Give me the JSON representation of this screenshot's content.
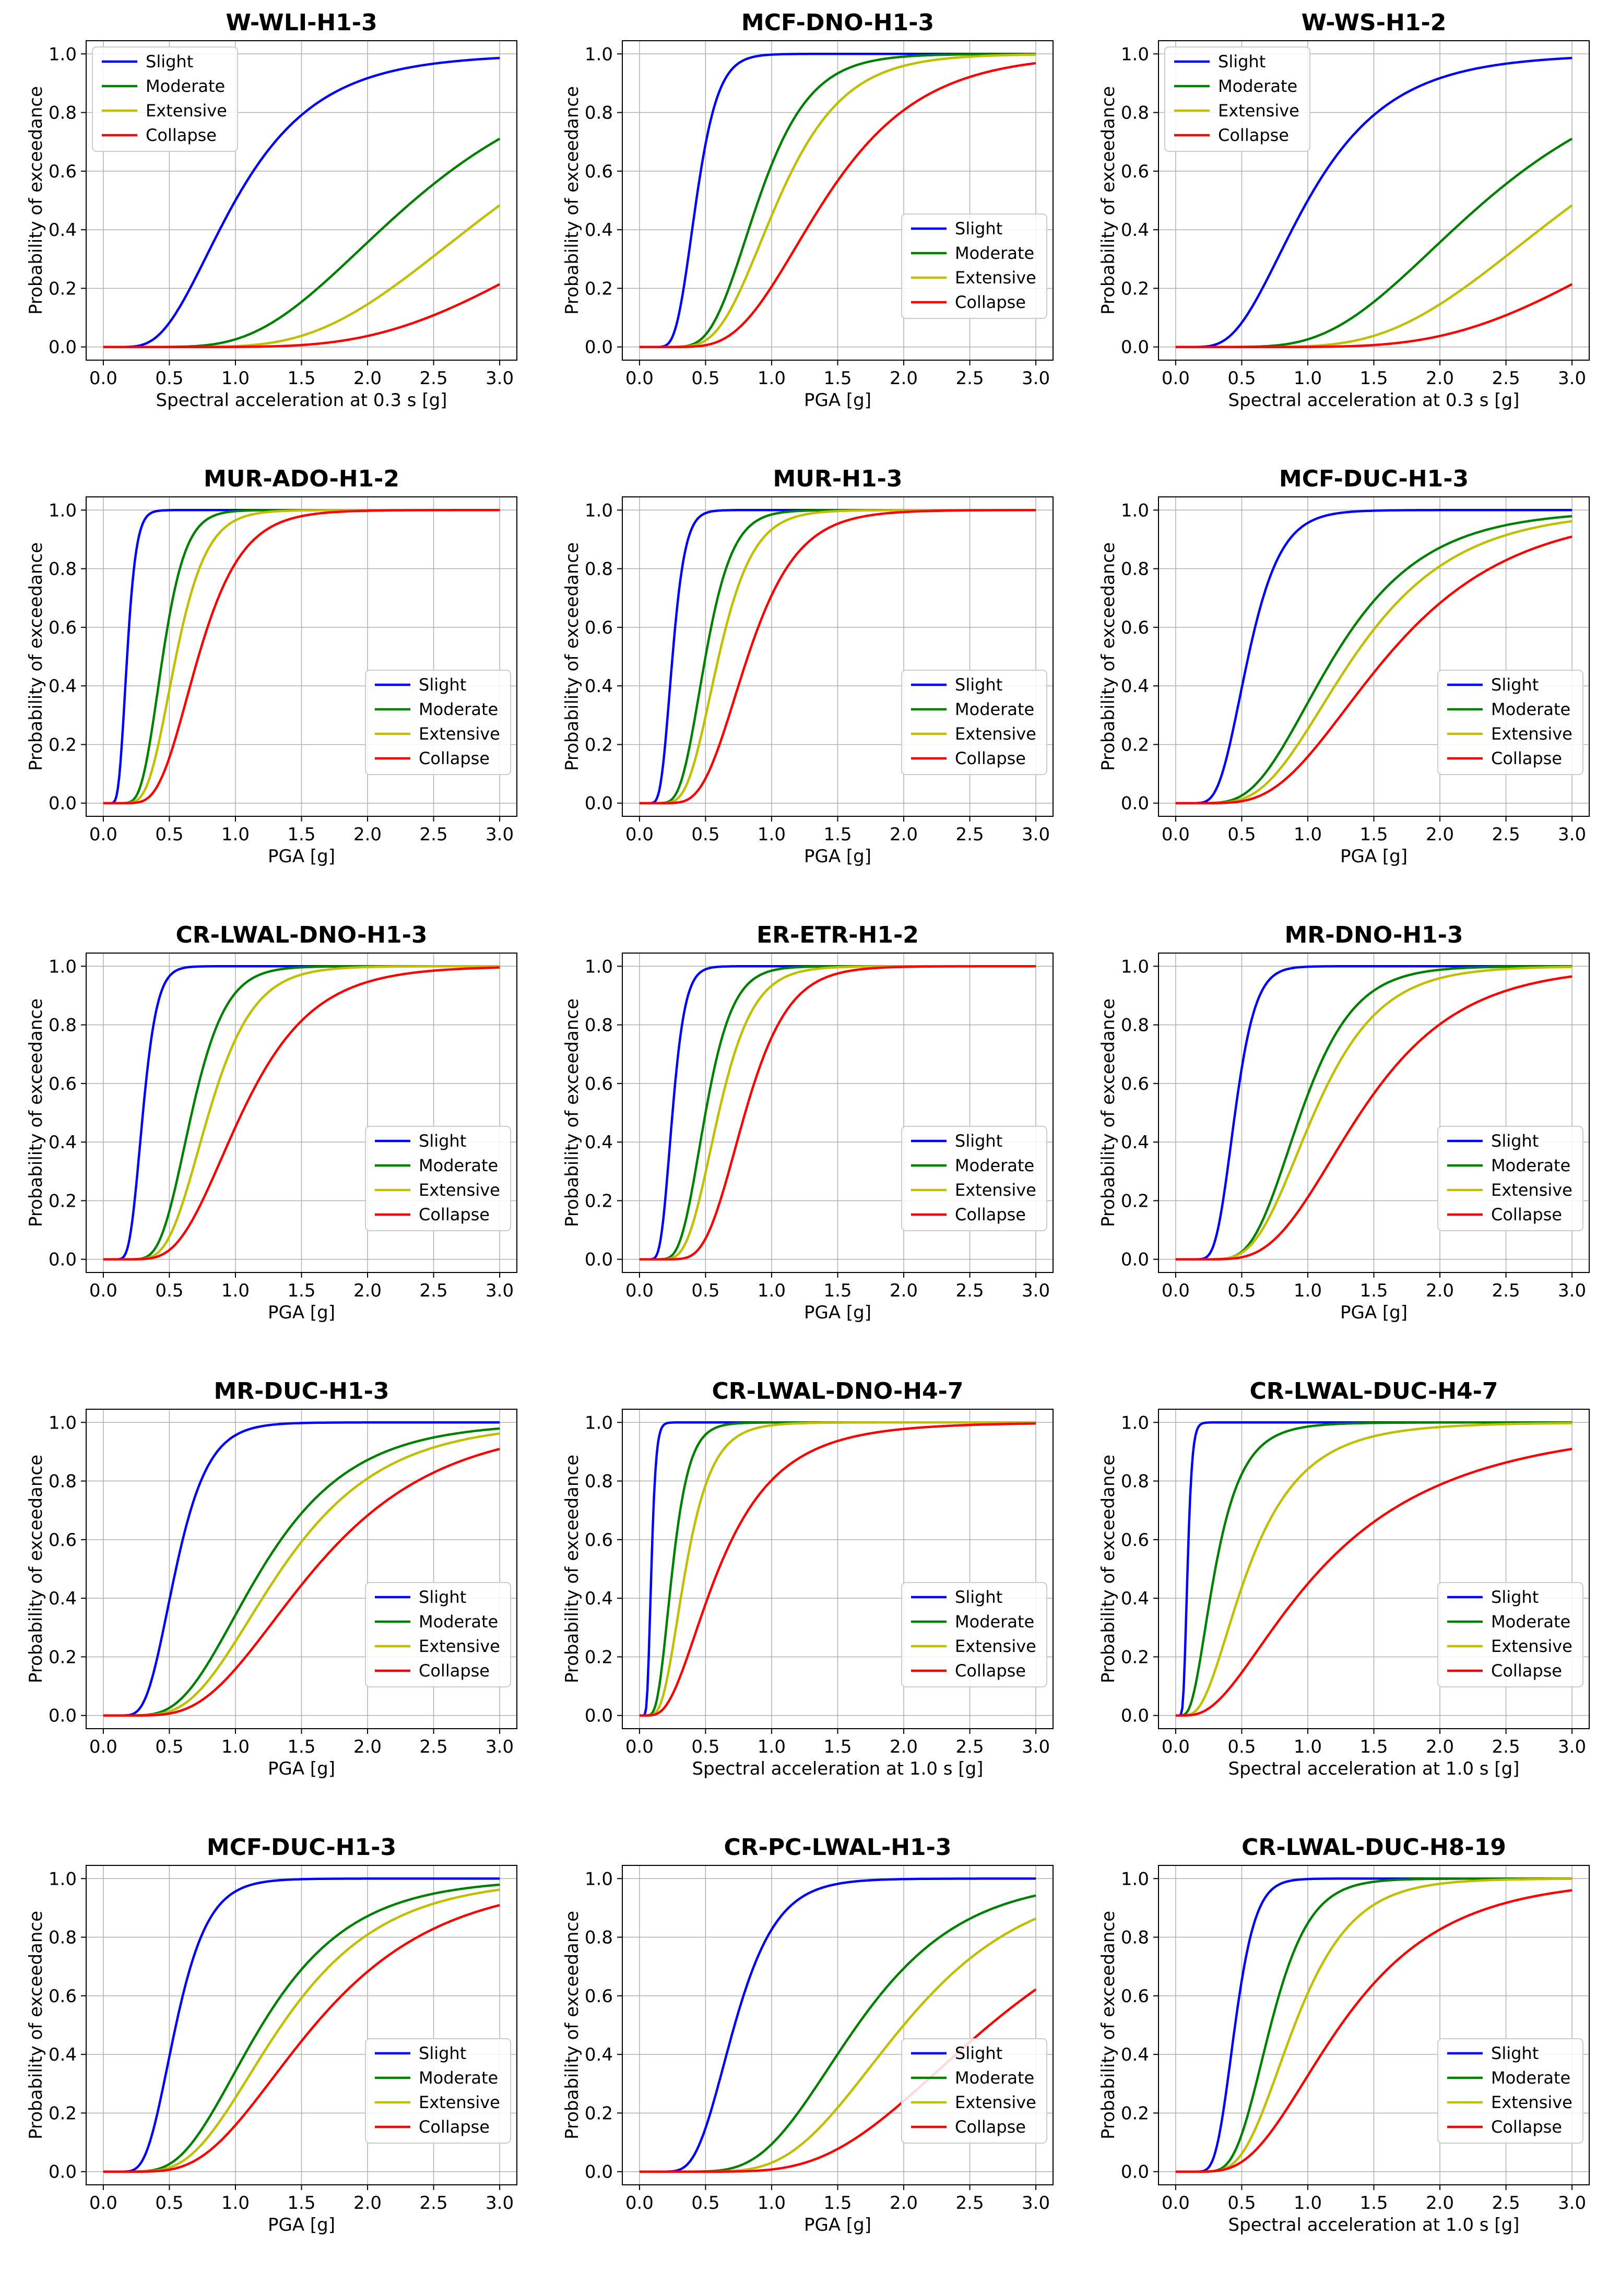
{
  "colors": {
    "Slight": "#0000ff",
    "Moderate": "#008000",
    "Extensive": "#bfbf00",
    "Collapse": "#ff0000"
  },
  "chart_data": [
    {
      "type": "line",
      "title": "W-WLI-H1-3",
      "xlabel": "Spectral acceleration at 0.3 s [g]",
      "ylabel": "Probability of exceedance",
      "xlim": [
        0,
        3
      ],
      "ylim": [
        0,
        1
      ],
      "xticks": [
        "0.0",
        "0.5",
        "1.0",
        "1.5",
        "2.0",
        "2.5",
        "3.0"
      ],
      "yticks": [
        "0.0",
        "0.2",
        "0.4",
        "0.6",
        "0.8",
        "1.0"
      ],
      "grid": true,
      "legend": "upper-left",
      "series": [
        {
          "name": "Slight",
          "median": 1.0,
          "beta": 0.5
        },
        {
          "name": "Moderate",
          "median": 2.35,
          "beta": 0.44
        },
        {
          "name": "Extensive",
          "median": 3.05,
          "beta": 0.4
        },
        {
          "name": "Collapse",
          "median": 4.15,
          "beta": 0.41
        }
      ]
    },
    {
      "type": "line",
      "title": "MCF-DNO-H1-3",
      "xlabel": "PGA [g]",
      "ylabel": "Probability of exceedance",
      "xlim": [
        0,
        3
      ],
      "ylim": [
        0,
        1
      ],
      "xticks": [
        "0.0",
        "0.5",
        "1.0",
        "1.5",
        "2.0",
        "2.5",
        "3.0"
      ],
      "yticks": [
        "0.0",
        "0.2",
        "0.4",
        "0.6",
        "0.8",
        "1.0"
      ],
      "grid": true,
      "legend": "lower-right",
      "series": [
        {
          "name": "Slight",
          "median": 0.43,
          "beta": 0.3
        },
        {
          "name": "Moderate",
          "median": 0.9,
          "beta": 0.34
        },
        {
          "name": "Extensive",
          "median": 1.05,
          "beta": 0.37
        },
        {
          "name": "Collapse",
          "median": 1.4,
          "beta": 0.41
        }
      ]
    },
    {
      "type": "line",
      "title": "W-WS-H1-2",
      "xlabel": "Spectral acceleration at 0.3 s [g]",
      "ylabel": "Probability of exceedance",
      "xlim": [
        0,
        3
      ],
      "ylim": [
        0,
        1
      ],
      "xticks": [
        "0.0",
        "0.5",
        "1.0",
        "1.5",
        "2.0",
        "2.5",
        "3.0"
      ],
      "yticks": [
        "0.0",
        "0.2",
        "0.4",
        "0.6",
        "0.8",
        "1.0"
      ],
      "grid": true,
      "legend": "upper-left",
      "series": [
        {
          "name": "Slight",
          "median": 1.0,
          "beta": 0.5
        },
        {
          "name": "Moderate",
          "median": 2.35,
          "beta": 0.44
        },
        {
          "name": "Extensive",
          "median": 3.05,
          "beta": 0.4
        },
        {
          "name": "Collapse",
          "median": 4.15,
          "beta": 0.41
        }
      ]
    },
    {
      "type": "line",
      "title": "MUR-ADO-H1-2",
      "xlabel": "PGA [g]",
      "ylabel": "Probability of exceedance",
      "xlim": [
        0,
        3
      ],
      "ylim": [
        0,
        1
      ],
      "xticks": [
        "0.0",
        "0.5",
        "1.0",
        "1.5",
        "2.0",
        "2.5",
        "3.0"
      ],
      "yticks": [
        "0.0",
        "0.2",
        "0.4",
        "0.6",
        "0.8",
        "1.0"
      ],
      "grid": true,
      "legend": "lower-right",
      "series": [
        {
          "name": "Slight",
          "median": 0.18,
          "beta": 0.3
        },
        {
          "name": "Moderate",
          "median": 0.45,
          "beta": 0.3
        },
        {
          "name": "Extensive",
          "median": 0.55,
          "beta": 0.33
        },
        {
          "name": "Collapse",
          "median": 0.72,
          "beta": 0.36
        }
      ]
    },
    {
      "type": "line",
      "title": "MUR-H1-3",
      "xlabel": "PGA [g]",
      "ylabel": "Probability of exceedance",
      "xlim": [
        0,
        3
      ],
      "ylim": [
        0,
        1
      ],
      "xticks": [
        "0.0",
        "0.5",
        "1.0",
        "1.5",
        "2.0",
        "2.5",
        "3.0"
      ],
      "yticks": [
        "0.0",
        "0.2",
        "0.4",
        "0.6",
        "0.8",
        "1.0"
      ],
      "grid": true,
      "legend": "lower-right",
      "series": [
        {
          "name": "Slight",
          "median": 0.25,
          "beta": 0.3
        },
        {
          "name": "Moderate",
          "median": 0.5,
          "beta": 0.32
        },
        {
          "name": "Extensive",
          "median": 0.6,
          "beta": 0.34
        },
        {
          "name": "Collapse",
          "median": 0.82,
          "beta": 0.36
        }
      ]
    },
    {
      "type": "line",
      "title": "MCF-DUC-H1-3",
      "xlabel": "PGA [g]",
      "ylabel": "Probability of exceedance",
      "xlim": [
        0,
        3
      ],
      "ylim": [
        0,
        1
      ],
      "xticks": [
        "0.0",
        "0.5",
        "1.0",
        "1.5",
        "2.0",
        "2.5",
        "3.0"
      ],
      "yticks": [
        "0.0",
        "0.2",
        "0.4",
        "0.6",
        "0.8",
        "1.0"
      ],
      "grid": true,
      "legend": "lower-right",
      "series": [
        {
          "name": "Slight",
          "median": 0.55,
          "beta": 0.35
        },
        {
          "name": "Moderate",
          "median": 1.2,
          "beta": 0.45
        },
        {
          "name": "Extensive",
          "median": 1.35,
          "beta": 0.45
        },
        {
          "name": "Collapse",
          "median": 1.6,
          "beta": 0.47
        }
      ]
    },
    {
      "type": "line",
      "title": "CR-LWAL-DNO-H1-3",
      "xlabel": "PGA [g]",
      "ylabel": "Probability of exceedance",
      "xlim": [
        0,
        3
      ],
      "ylim": [
        0,
        1
      ],
      "xticks": [
        "0.0",
        "0.5",
        "1.0",
        "1.5",
        "2.0",
        "2.5",
        "3.0"
      ],
      "yticks": [
        "0.0",
        "0.2",
        "0.4",
        "0.6",
        "0.8",
        "1.0"
      ],
      "grid": true,
      "legend": "lower-right",
      "series": [
        {
          "name": "Slight",
          "median": 0.3,
          "beta": 0.28
        },
        {
          "name": "Moderate",
          "median": 0.67,
          "beta": 0.3
        },
        {
          "name": "Extensive",
          "median": 0.8,
          "beta": 0.33
        },
        {
          "name": "Collapse",
          "median": 1.05,
          "beta": 0.4
        }
      ]
    },
    {
      "type": "line",
      "title": "ER-ETR-H1-2",
      "xlabel": "PGA [g]",
      "ylabel": "Probability of exceedance",
      "xlim": [
        0,
        3
      ],
      "ylim": [
        0,
        1
      ],
      "xticks": [
        "0.0",
        "0.5",
        "1.0",
        "1.5",
        "2.0",
        "2.5",
        "3.0"
      ],
      "yticks": [
        "0.0",
        "0.2",
        "0.4",
        "0.6",
        "0.8",
        "1.0"
      ],
      "grid": true,
      "legend": "lower-right",
      "series": [
        {
          "name": "Slight",
          "median": 0.25,
          "beta": 0.3
        },
        {
          "name": "Moderate",
          "median": 0.5,
          "beta": 0.32
        },
        {
          "name": "Extensive",
          "median": 0.6,
          "beta": 0.34
        },
        {
          "name": "Collapse",
          "median": 0.8,
          "beta": 0.32
        }
      ]
    },
    {
      "type": "line",
      "title": "MR-DNO-H1-3",
      "xlabel": "PGA [g]",
      "ylabel": "Probability of exceedance",
      "xlim": [
        0,
        3
      ],
      "ylim": [
        0,
        1
      ],
      "xticks": [
        "0.0",
        "0.5",
        "1.0",
        "1.5",
        "2.0",
        "2.5",
        "3.0"
      ],
      "yticks": [
        "0.0",
        "0.2",
        "0.4",
        "0.6",
        "0.8",
        "1.0"
      ],
      "grid": true,
      "legend": "lower-right",
      "series": [
        {
          "name": "Slight",
          "median": 0.45,
          "beta": 0.27
        },
        {
          "name": "Moderate",
          "median": 0.95,
          "beta": 0.33
        },
        {
          "name": "Extensive",
          "median": 1.05,
          "beta": 0.37
        },
        {
          "name": "Collapse",
          "median": 1.4,
          "beta": 0.42
        }
      ]
    },
    {
      "type": "line",
      "title": "MR-DUC-H1-3",
      "xlabel": "PGA [g]",
      "ylabel": "Probability of exceedance",
      "xlim": [
        0,
        3
      ],
      "ylim": [
        0,
        1
      ],
      "xticks": [
        "0.0",
        "0.5",
        "1.0",
        "1.5",
        "2.0",
        "2.5",
        "3.0"
      ],
      "yticks": [
        "0.0",
        "0.2",
        "0.4",
        "0.6",
        "0.8",
        "1.0"
      ],
      "grid": true,
      "legend": "lower-right",
      "series": [
        {
          "name": "Slight",
          "median": 0.55,
          "beta": 0.35
        },
        {
          "name": "Moderate",
          "median": 1.2,
          "beta": 0.45
        },
        {
          "name": "Extensive",
          "median": 1.35,
          "beta": 0.45
        },
        {
          "name": "Collapse",
          "median": 1.6,
          "beta": 0.47
        }
      ]
    },
    {
      "type": "line",
      "title": "CR-LWAL-DNO-H4-7",
      "xlabel": "Spectral acceleration at 1.0 s [g]",
      "ylabel": "Probability of exceedance",
      "xlim": [
        0,
        3
      ],
      "ylim": [
        0,
        1
      ],
      "xticks": [
        "0.0",
        "0.5",
        "1.0",
        "1.5",
        "2.0",
        "2.5",
        "3.0"
      ],
      "yticks": [
        "0.0",
        "0.2",
        "0.4",
        "0.6",
        "0.8",
        "1.0"
      ],
      "grid": true,
      "legend": "lower-right",
      "series": [
        {
          "name": "Slight",
          "median": 0.09,
          "beta": 0.3
        },
        {
          "name": "Moderate",
          "median": 0.25,
          "beta": 0.4
        },
        {
          "name": "Extensive",
          "median": 0.35,
          "beta": 0.45
        },
        {
          "name": "Collapse",
          "median": 0.6,
          "beta": 0.6
        }
      ]
    },
    {
      "type": "line",
      "title": "CR-LWAL-DUC-H4-7",
      "xlabel": "Spectral acceleration at 1.0 s [g]",
      "ylabel": "Probability of exceedance",
      "xlim": [
        0,
        3
      ],
      "ylim": [
        0,
        1
      ],
      "xticks": [
        "0.0",
        "0.5",
        "1.0",
        "1.5",
        "2.0",
        "2.5",
        "3.0"
      ],
      "yticks": [
        "0.0",
        "0.2",
        "0.4",
        "0.6",
        "0.8",
        "1.0"
      ],
      "grid": true,
      "legend": "lower-right",
      "series": [
        {
          "name": "Slight",
          "median": 0.09,
          "beta": 0.3
        },
        {
          "name": "Moderate",
          "median": 0.3,
          "beta": 0.55
        },
        {
          "name": "Extensive",
          "median": 0.55,
          "beta": 0.6
        },
        {
          "name": "Collapse",
          "median": 1.1,
          "beta": 0.75
        }
      ]
    },
    {
      "type": "line",
      "title": "MCF-DUC-H1-3",
      "xlabel": "PGA [g]",
      "ylabel": "Probability of exceedance",
      "xlim": [
        0,
        3
      ],
      "ylim": [
        0,
        1
      ],
      "xticks": [
        "0.0",
        "0.5",
        "1.0",
        "1.5",
        "2.0",
        "2.5",
        "3.0"
      ],
      "yticks": [
        "0.0",
        "0.2",
        "0.4",
        "0.6",
        "0.8",
        "1.0"
      ],
      "grid": true,
      "legend": "lower-right",
      "series": [
        {
          "name": "Slight",
          "median": 0.55,
          "beta": 0.35
        },
        {
          "name": "Moderate",
          "median": 1.2,
          "beta": 0.45
        },
        {
          "name": "Extensive",
          "median": 1.35,
          "beta": 0.45
        },
        {
          "name": "Collapse",
          "median": 1.6,
          "beta": 0.47
        }
      ]
    },
    {
      "type": "line",
      "title": "CR-PC-LWAL-H1-3",
      "xlabel": "PGA [g]",
      "ylabel": "Probability of exceedance",
      "xlim": [
        0,
        3
      ],
      "ylim": [
        0,
        1
      ],
      "xticks": [
        "0.0",
        "0.5",
        "1.0",
        "1.5",
        "2.0",
        "2.5",
        "3.0"
      ],
      "yticks": [
        "0.0",
        "0.2",
        "0.4",
        "0.6",
        "0.8",
        "1.0"
      ],
      "grid": true,
      "legend": "lower-right",
      "series": [
        {
          "name": "Slight",
          "median": 0.72,
          "beta": 0.35
        },
        {
          "name": "Moderate",
          "median": 1.65,
          "beta": 0.38
        },
        {
          "name": "Extensive",
          "median": 2.0,
          "beta": 0.37
        },
        {
          "name": "Collapse",
          "median": 2.65,
          "beta": 0.4
        }
      ]
    },
    {
      "type": "line",
      "title": "CR-LWAL-DUC-H8-19",
      "xlabel": "Spectral acceleration at 1.0 s [g]",
      "ylabel": "Probability of exceedance",
      "xlim": [
        0,
        3
      ],
      "ylim": [
        0,
        1
      ],
      "xticks": [
        "0.0",
        "0.5",
        "1.0",
        "1.5",
        "2.0",
        "2.5",
        "3.0"
      ],
      "yticks": [
        "0.0",
        "0.2",
        "0.4",
        "0.6",
        "0.8",
        "1.0"
      ],
      "grid": true,
      "legend": "lower-right",
      "series": [
        {
          "name": "Slight",
          "median": 0.45,
          "beta": 0.27
        },
        {
          "name": "Moderate",
          "median": 0.72,
          "beta": 0.32
        },
        {
          "name": "Extensive",
          "median": 0.9,
          "beta": 0.38
        },
        {
          "name": "Collapse",
          "median": 1.25,
          "beta": 0.5
        }
      ]
    }
  ]
}
